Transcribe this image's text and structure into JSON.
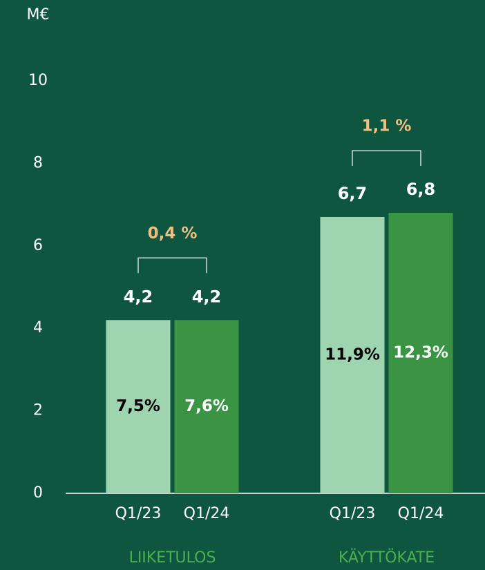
{
  "chart_data": {
    "type": "grouped_bar",
    "y_unit": "M€",
    "categories": [
      "LIIKETULOS",
      "KÄYTTÖKATE"
    ],
    "series": [
      {
        "name": "Q1/23",
        "color": "#9fd4b1",
        "label_color": "#000000",
        "values": [
          4.2,
          6.7
        ],
        "value_labels": [
          "4,2",
          "6,7"
        ],
        "inner_labels": [
          "7,5%",
          "11,9%"
        ]
      },
      {
        "name": "Q1/24",
        "color": "#3a9444",
        "label_color": "#ffffff",
        "values": [
          4.2,
          6.8
        ],
        "value_labels": [
          "4,2",
          "6,8"
        ],
        "inner_labels": [
          "7,6%",
          "12,3%"
        ]
      }
    ],
    "change_labels": [
      "0,4 %",
      "1,1 %"
    ],
    "ylim": [
      0,
      10
    ],
    "yticks": [
      0,
      2,
      4,
      6,
      8,
      10
    ],
    "grid": false
  }
}
